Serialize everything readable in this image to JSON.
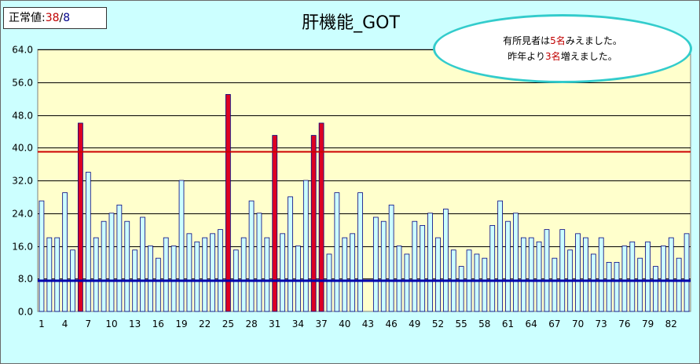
{
  "norm_box": {
    "label": "正常値:",
    "value": "38",
    "sep": "/",
    "total": "8"
  },
  "callout": {
    "line1_pre": "有所見者は",
    "line1_num": "5名",
    "line1_post": "みえました。",
    "line2_pre": "昨年より",
    "line2_num": "3名",
    "line2_post": "増えました。"
  },
  "colors": {
    "normal_bar": "#ccffff",
    "abnormal_bar": "#dd0022",
    "upper_line": "#cc0000",
    "lower_line": "#0000aa",
    "plot_bg": "#ffffcc",
    "chart_bg": "#ccffff"
  },
  "chart_data": {
    "type": "bar",
    "title": "肝機能_GOT",
    "xlabel": "",
    "ylabel": "",
    "ylim": [
      0,
      64
    ],
    "yticks": [
      "0.0",
      "8.0",
      "16.0",
      "24.0",
      "32.0",
      "40.0",
      "48.0",
      "56.0",
      "64.0"
    ],
    "xtick_labels": [
      "1",
      "4",
      "7",
      "10",
      "13",
      "16",
      "19",
      "22",
      "25",
      "28",
      "31",
      "34",
      "37",
      "40",
      "43",
      "46",
      "49",
      "52",
      "55",
      "58",
      "61",
      "64",
      "67",
      "70",
      "73",
      "76",
      "79",
      "82"
    ],
    "grid": true,
    "upper_limit": 39,
    "lower_limit": 7.5,
    "values": [
      27,
      18,
      18,
      29,
      15,
      46,
      34,
      18,
      22,
      24,
      26,
      22,
      15,
      23,
      16,
      13,
      18,
      16,
      32,
      19,
      17,
      18,
      19,
      20,
      53,
      15,
      18,
      27,
      24,
      18,
      43,
      19,
      28,
      16,
      32,
      43,
      46,
      14,
      29,
      18,
      19,
      29,
      0,
      23,
      22,
      26,
      16,
      14,
      22,
      21,
      24,
      18,
      25,
      15,
      11,
      15,
      14,
      13,
      21,
      27,
      22,
      24,
      18,
      18,
      17,
      20,
      13,
      20,
      15,
      19,
      18,
      14,
      18,
      12,
      12,
      16,
      17,
      13,
      17,
      11,
      16,
      18,
      13,
      19
    ]
  }
}
